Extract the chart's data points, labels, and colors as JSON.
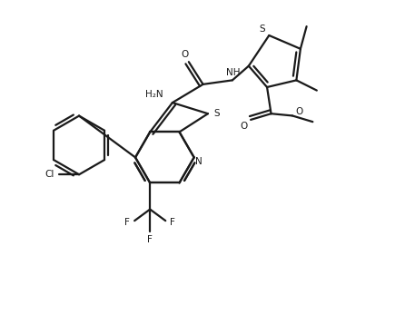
{
  "background_color": "#ffffff",
  "line_color": "#1a1a1a",
  "line_width": 1.6,
  "figsize": [
    4.57,
    3.58
  ],
  "dpi": 100,
  "xlim": [
    0,
    10
  ],
  "ylim": [
    0,
    7.85
  ]
}
